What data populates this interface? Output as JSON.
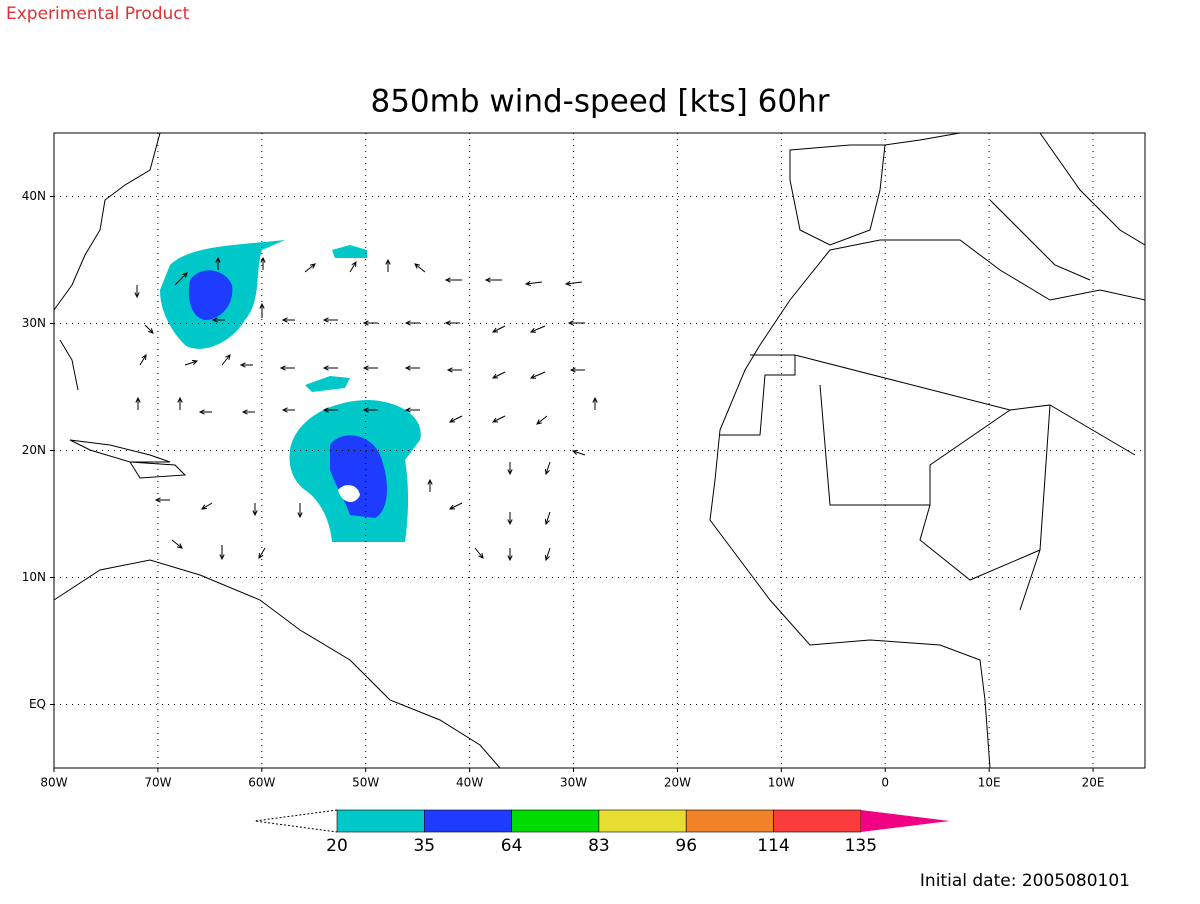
{
  "header": {
    "label": "Experimental Product"
  },
  "title": "850mb wind-speed [kts] 60hr",
  "map": {
    "xlim": [
      -80,
      25
    ],
    "ylim": [
      -5,
      45
    ],
    "xticks": [
      {
        "value": -80,
        "label": "80W"
      },
      {
        "value": -70,
        "label": "70W"
      },
      {
        "value": -60,
        "label": "60W"
      },
      {
        "value": -50,
        "label": "50W"
      },
      {
        "value": -40,
        "label": "40W"
      },
      {
        "value": -30,
        "label": "30W"
      },
      {
        "value": -20,
        "label": "20W"
      },
      {
        "value": -10,
        "label": "10W"
      },
      0,
      {
        "value": 10,
        "label": "10E"
      },
      {
        "value": 20,
        "label": "20E"
      }
    ],
    "yticks": [
      {
        "value": 0,
        "label": "EQ"
      },
      {
        "value": 10,
        "label": "10N"
      },
      {
        "value": 20,
        "label": "20N"
      },
      {
        "value": 30,
        "label": "30N"
      },
      {
        "value": 40,
        "label": "40N"
      }
    ],
    "grid": true
  },
  "colorbar": {
    "levels": [
      20,
      35,
      64,
      83,
      96,
      114,
      135
    ],
    "colors": [
      "#00c8c8",
      "#1e3cff",
      "#00dc00",
      "#e6dc32",
      "#f08228",
      "#fa3c3c",
      "#f00082"
    ]
  },
  "footer": "Initial date: 2005080101"
}
